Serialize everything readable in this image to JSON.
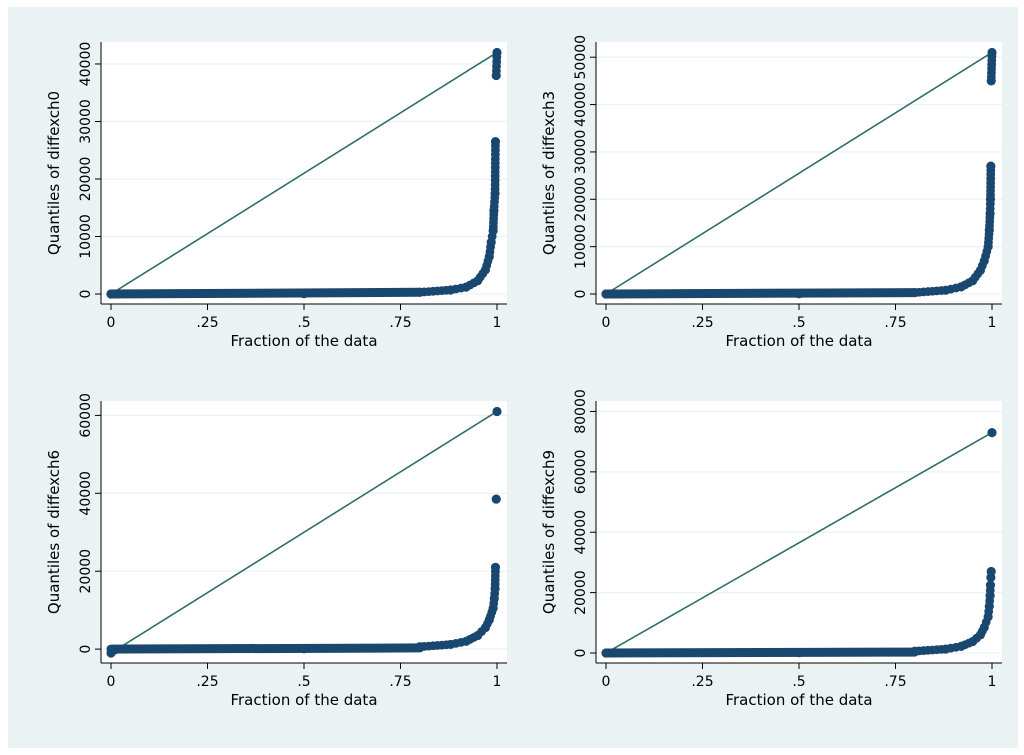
{
  "colors": {
    "marker": "#1a476f",
    "line": "#2d6f6a",
    "panel_bg": "#eaf2f3",
    "plot_bg": "#ffffff"
  },
  "chart_data": [
    {
      "type": "scatter",
      "xlabel": "Fraction of the data",
      "ylabel": "Quantiles of diffexch0",
      "xlim": [
        0,
        1
      ],
      "ylim": [
        0,
        42000
      ],
      "xticks": [
        0,
        0.25,
        0.5,
        0.75,
        1
      ],
      "xtick_labels": [
        "0",
        ".25",
        ".5",
        ".75",
        "1"
      ],
      "yticks": [
        0,
        10000,
        20000,
        30000,
        40000
      ],
      "ytick_labels": [
        "0",
        "10000",
        "20000",
        "30000",
        "40000"
      ],
      "grid": true,
      "reference_line": {
        "x": [
          0,
          1
        ],
        "y": [
          0,
          42000
        ]
      },
      "points": [
        [
          0,
          0
        ],
        [
          0.5,
          50
        ],
        [
          0.8,
          300
        ],
        [
          0.88,
          700
        ],
        [
          0.92,
          1200
        ],
        [
          0.95,
          2300
        ],
        [
          0.97,
          4200
        ],
        [
          0.98,
          6500
        ],
        [
          0.985,
          9000
        ],
        [
          0.99,
          11000
        ],
        [
          0.992,
          14500
        ],
        [
          0.995,
          17500
        ],
        [
          0.996,
          26500
        ],
        [
          0.998,
          38000
        ],
        [
          1,
          42000
        ]
      ]
    },
    {
      "type": "scatter",
      "xlabel": "Fraction of the data",
      "ylabel": "Quantiles of diffexch3",
      "xlim": [
        0,
        1
      ],
      "ylim": [
        0,
        51000
      ],
      "xticks": [
        0,
        0.25,
        0.5,
        0.75,
        1
      ],
      "xtick_labels": [
        "0",
        ".25",
        ".5",
        ".75",
        "1"
      ],
      "yticks": [
        0,
        10000,
        20000,
        30000,
        40000,
        50000
      ],
      "ytick_labels": [
        "0",
        "10000",
        "20000",
        "30000",
        "40000",
        "50000"
      ],
      "grid": true,
      "reference_line": {
        "x": [
          0,
          1
        ],
        "y": [
          0,
          51000
        ]
      },
      "points": [
        [
          0,
          0
        ],
        [
          0.5,
          60
        ],
        [
          0.8,
          300
        ],
        [
          0.88,
          800
        ],
        [
          0.92,
          1500
        ],
        [
          0.95,
          2800
        ],
        [
          0.97,
          5000
        ],
        [
          0.98,
          7000
        ],
        [
          0.99,
          10000
        ],
        [
          0.993,
          13500
        ],
        [
          0.995,
          17000
        ],
        [
          0.996,
          20000
        ],
        [
          0.997,
          27000
        ],
        [
          0.998,
          45000
        ],
        [
          1,
          51000
        ]
      ]
    },
    {
      "type": "scatter",
      "xlabel": "Fraction of the data",
      "ylabel": "Quantiles of diffexch6",
      "xlim": [
        0,
        1
      ],
      "ylim": [
        -1000,
        61000
      ],
      "xticks": [
        0,
        0.25,
        0.5,
        0.75,
        1
      ],
      "xtick_labels": [
        "0",
        ".25",
        ".5",
        ".75",
        "1"
      ],
      "yticks": [
        0,
        20000,
        40000,
        60000
      ],
      "ytick_labels": [
        "0",
        "20000",
        "40000",
        "60000"
      ],
      "grid": true,
      "reference_line": {
        "x": [
          0,
          1
        ],
        "y": [
          -1000,
          61000
        ]
      },
      "points": [
        [
          0,
          -1000
        ],
        [
          0.01,
          -200
        ],
        [
          0.5,
          100
        ],
        [
          0.8,
          600
        ],
        [
          0.88,
          1200
        ],
        [
          0.92,
          2000
        ],
        [
          0.95,
          3500
        ],
        [
          0.97,
          5500
        ],
        [
          0.98,
          7500
        ],
        [
          0.99,
          10500
        ],
        [
          0.993,
          13000
        ],
        [
          0.995,
          15500
        ],
        [
          0.996,
          21000
        ],
        [
          0.998,
          38500
        ],
        [
          1,
          61000
        ]
      ]
    },
    {
      "type": "scatter",
      "xlabel": "Fraction of the data",
      "ylabel": "Quantiles of diffexch9",
      "xlim": [
        0,
        1
      ],
      "ylim": [
        0,
        73000
      ],
      "xticks": [
        0,
        0.25,
        0.5,
        0.75,
        1
      ],
      "xtick_labels": [
        "0",
        ".25",
        ".5",
        ".75",
        "1"
      ],
      "yticks": [
        0,
        20000,
        40000,
        60000,
        80000
      ],
      "ytick_labels": [
        "0",
        "20000",
        "40000",
        "60000",
        "80000"
      ],
      "grid": true,
      "reference_line": {
        "x": [
          0,
          1
        ],
        "y": [
          0,
          73000
        ]
      },
      "points": [
        [
          0,
          0
        ],
        [
          0.5,
          100
        ],
        [
          0.8,
          600
        ],
        [
          0.88,
          1300
        ],
        [
          0.92,
          2200
        ],
        [
          0.95,
          3800
        ],
        [
          0.97,
          6000
        ],
        [
          0.98,
          8500
        ],
        [
          0.99,
          12000
        ],
        [
          0.993,
          15500
        ],
        [
          0.995,
          19000
        ],
        [
          0.996,
          22500
        ],
        [
          0.997,
          25000
        ],
        [
          0.998,
          27000
        ],
        [
          1,
          73000
        ]
      ]
    }
  ]
}
